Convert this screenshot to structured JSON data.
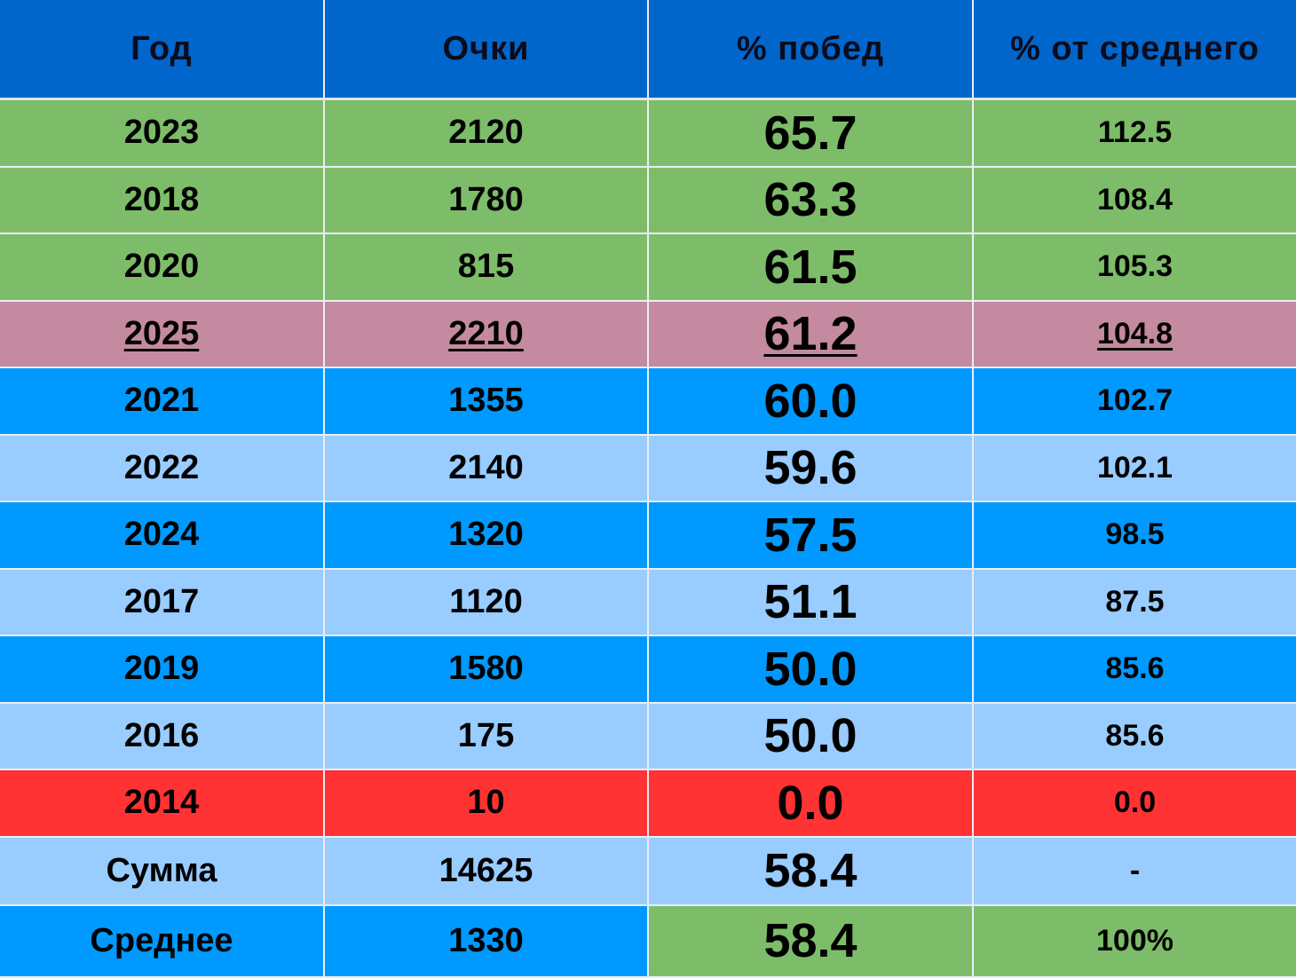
{
  "colors": {
    "header": "#0066cc",
    "green": "#7dbd69",
    "mauve": "#c48aa0",
    "bright_blue": "#0099ff",
    "light_blue": "#99ccff",
    "red": "#ff3333"
  },
  "headers": [
    "Год",
    "Очки",
    "% побед",
    "% от среднего"
  ],
  "rows": [
    {
      "cells": [
        "2023",
        "2120",
        "65.7",
        "112.5"
      ],
      "bg": [
        "green",
        "green",
        "green",
        "green"
      ],
      "highlight": false
    },
    {
      "cells": [
        "2018",
        "1780",
        "63.3",
        "108.4"
      ],
      "bg": [
        "green",
        "green",
        "green",
        "green"
      ],
      "highlight": false
    },
    {
      "cells": [
        "2020",
        "815",
        "61.5",
        "105.3"
      ],
      "bg": [
        "green",
        "green",
        "green",
        "green"
      ],
      "highlight": false
    },
    {
      "cells": [
        "2025",
        "2210",
        "61.2",
        "104.8"
      ],
      "bg": [
        "mauve",
        "mauve",
        "mauve",
        "mauve"
      ],
      "highlight": true
    },
    {
      "cells": [
        "2021",
        "1355",
        "60.0",
        "102.7"
      ],
      "bg": [
        "bright_blue",
        "bright_blue",
        "bright_blue",
        "bright_blue"
      ],
      "highlight": false
    },
    {
      "cells": [
        "2022",
        "2140",
        "59.6",
        "102.1"
      ],
      "bg": [
        "light_blue",
        "light_blue",
        "light_blue",
        "light_blue"
      ],
      "highlight": false
    },
    {
      "cells": [
        "2024",
        "1320",
        "57.5",
        "98.5"
      ],
      "bg": [
        "bright_blue",
        "bright_blue",
        "bright_blue",
        "bright_blue"
      ],
      "highlight": false
    },
    {
      "cells": [
        "2017",
        "1120",
        "51.1",
        "87.5"
      ],
      "bg": [
        "light_blue",
        "light_blue",
        "light_blue",
        "light_blue"
      ],
      "highlight": false
    },
    {
      "cells": [
        "2019",
        "1580",
        "50.0",
        "85.6"
      ],
      "bg": [
        "bright_blue",
        "bright_blue",
        "bright_blue",
        "bright_blue"
      ],
      "highlight": false
    },
    {
      "cells": [
        "2016",
        "175",
        "50.0",
        "85.6"
      ],
      "bg": [
        "light_blue",
        "light_blue",
        "light_blue",
        "light_blue"
      ],
      "highlight": false
    },
    {
      "cells": [
        "2014",
        "10",
        "0.0",
        "0.0"
      ],
      "bg": [
        "red",
        "red",
        "red",
        "red"
      ],
      "highlight": false
    },
    {
      "cells": [
        "Сумма",
        "14625",
        "58.4",
        "-"
      ],
      "bg": [
        "light_blue",
        "light_blue",
        "light_blue",
        "light_blue"
      ],
      "highlight": false
    },
    {
      "cells": [
        "Среднее",
        "1330",
        "58.4",
        "100%"
      ],
      "bg": [
        "bright_blue",
        "bright_blue",
        "green",
        "green"
      ],
      "highlight": false
    }
  ]
}
